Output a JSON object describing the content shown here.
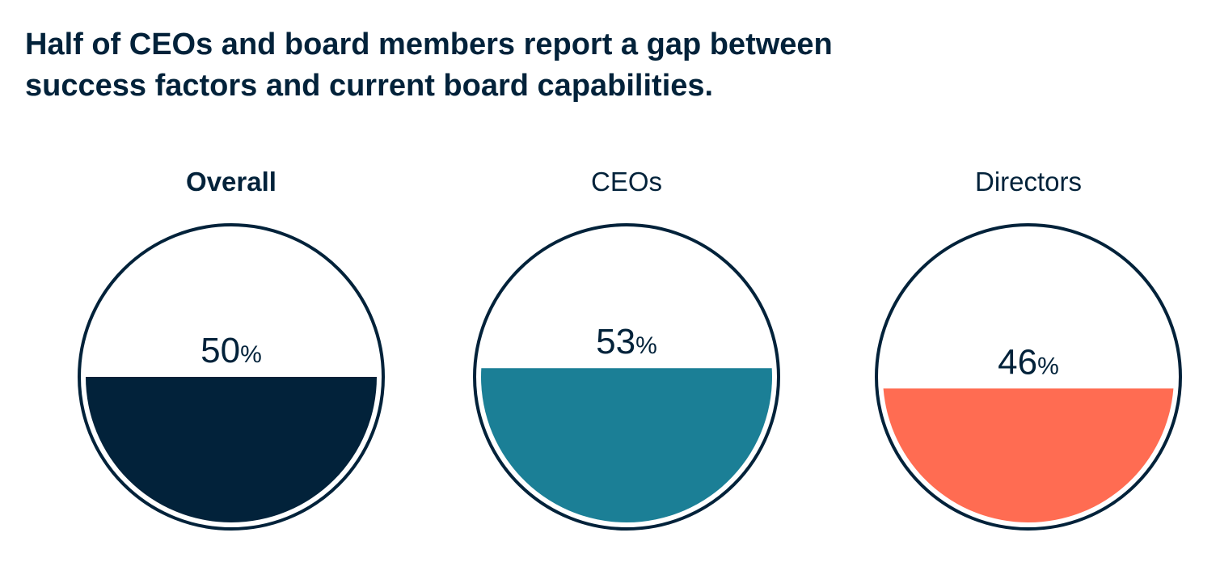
{
  "title": {
    "line1": "Half of CEOs and board members report a gap between",
    "line2": "success factors and current board capabilities."
  },
  "chart_data": {
    "type": "fill-gauge",
    "title": "Half of CEOs and board members report a gap between success factors and current board capabilities.",
    "unit": "%",
    "categories": [
      "Overall",
      "CEOs",
      "Directors"
    ],
    "values": [
      50,
      53,
      46
    ],
    "colors": [
      "#02223a",
      "#1b7f96",
      "#ff6c52"
    ],
    "outline_color": "#02223a",
    "label_bold": [
      true,
      false,
      false
    ]
  },
  "gauges": [
    {
      "label": "Overall",
      "value_text": "50",
      "unit": "%"
    },
    {
      "label": "CEOs",
      "value_text": "53",
      "unit": "%"
    },
    {
      "label": "Directors",
      "value_text": "46",
      "unit": "%"
    }
  ]
}
